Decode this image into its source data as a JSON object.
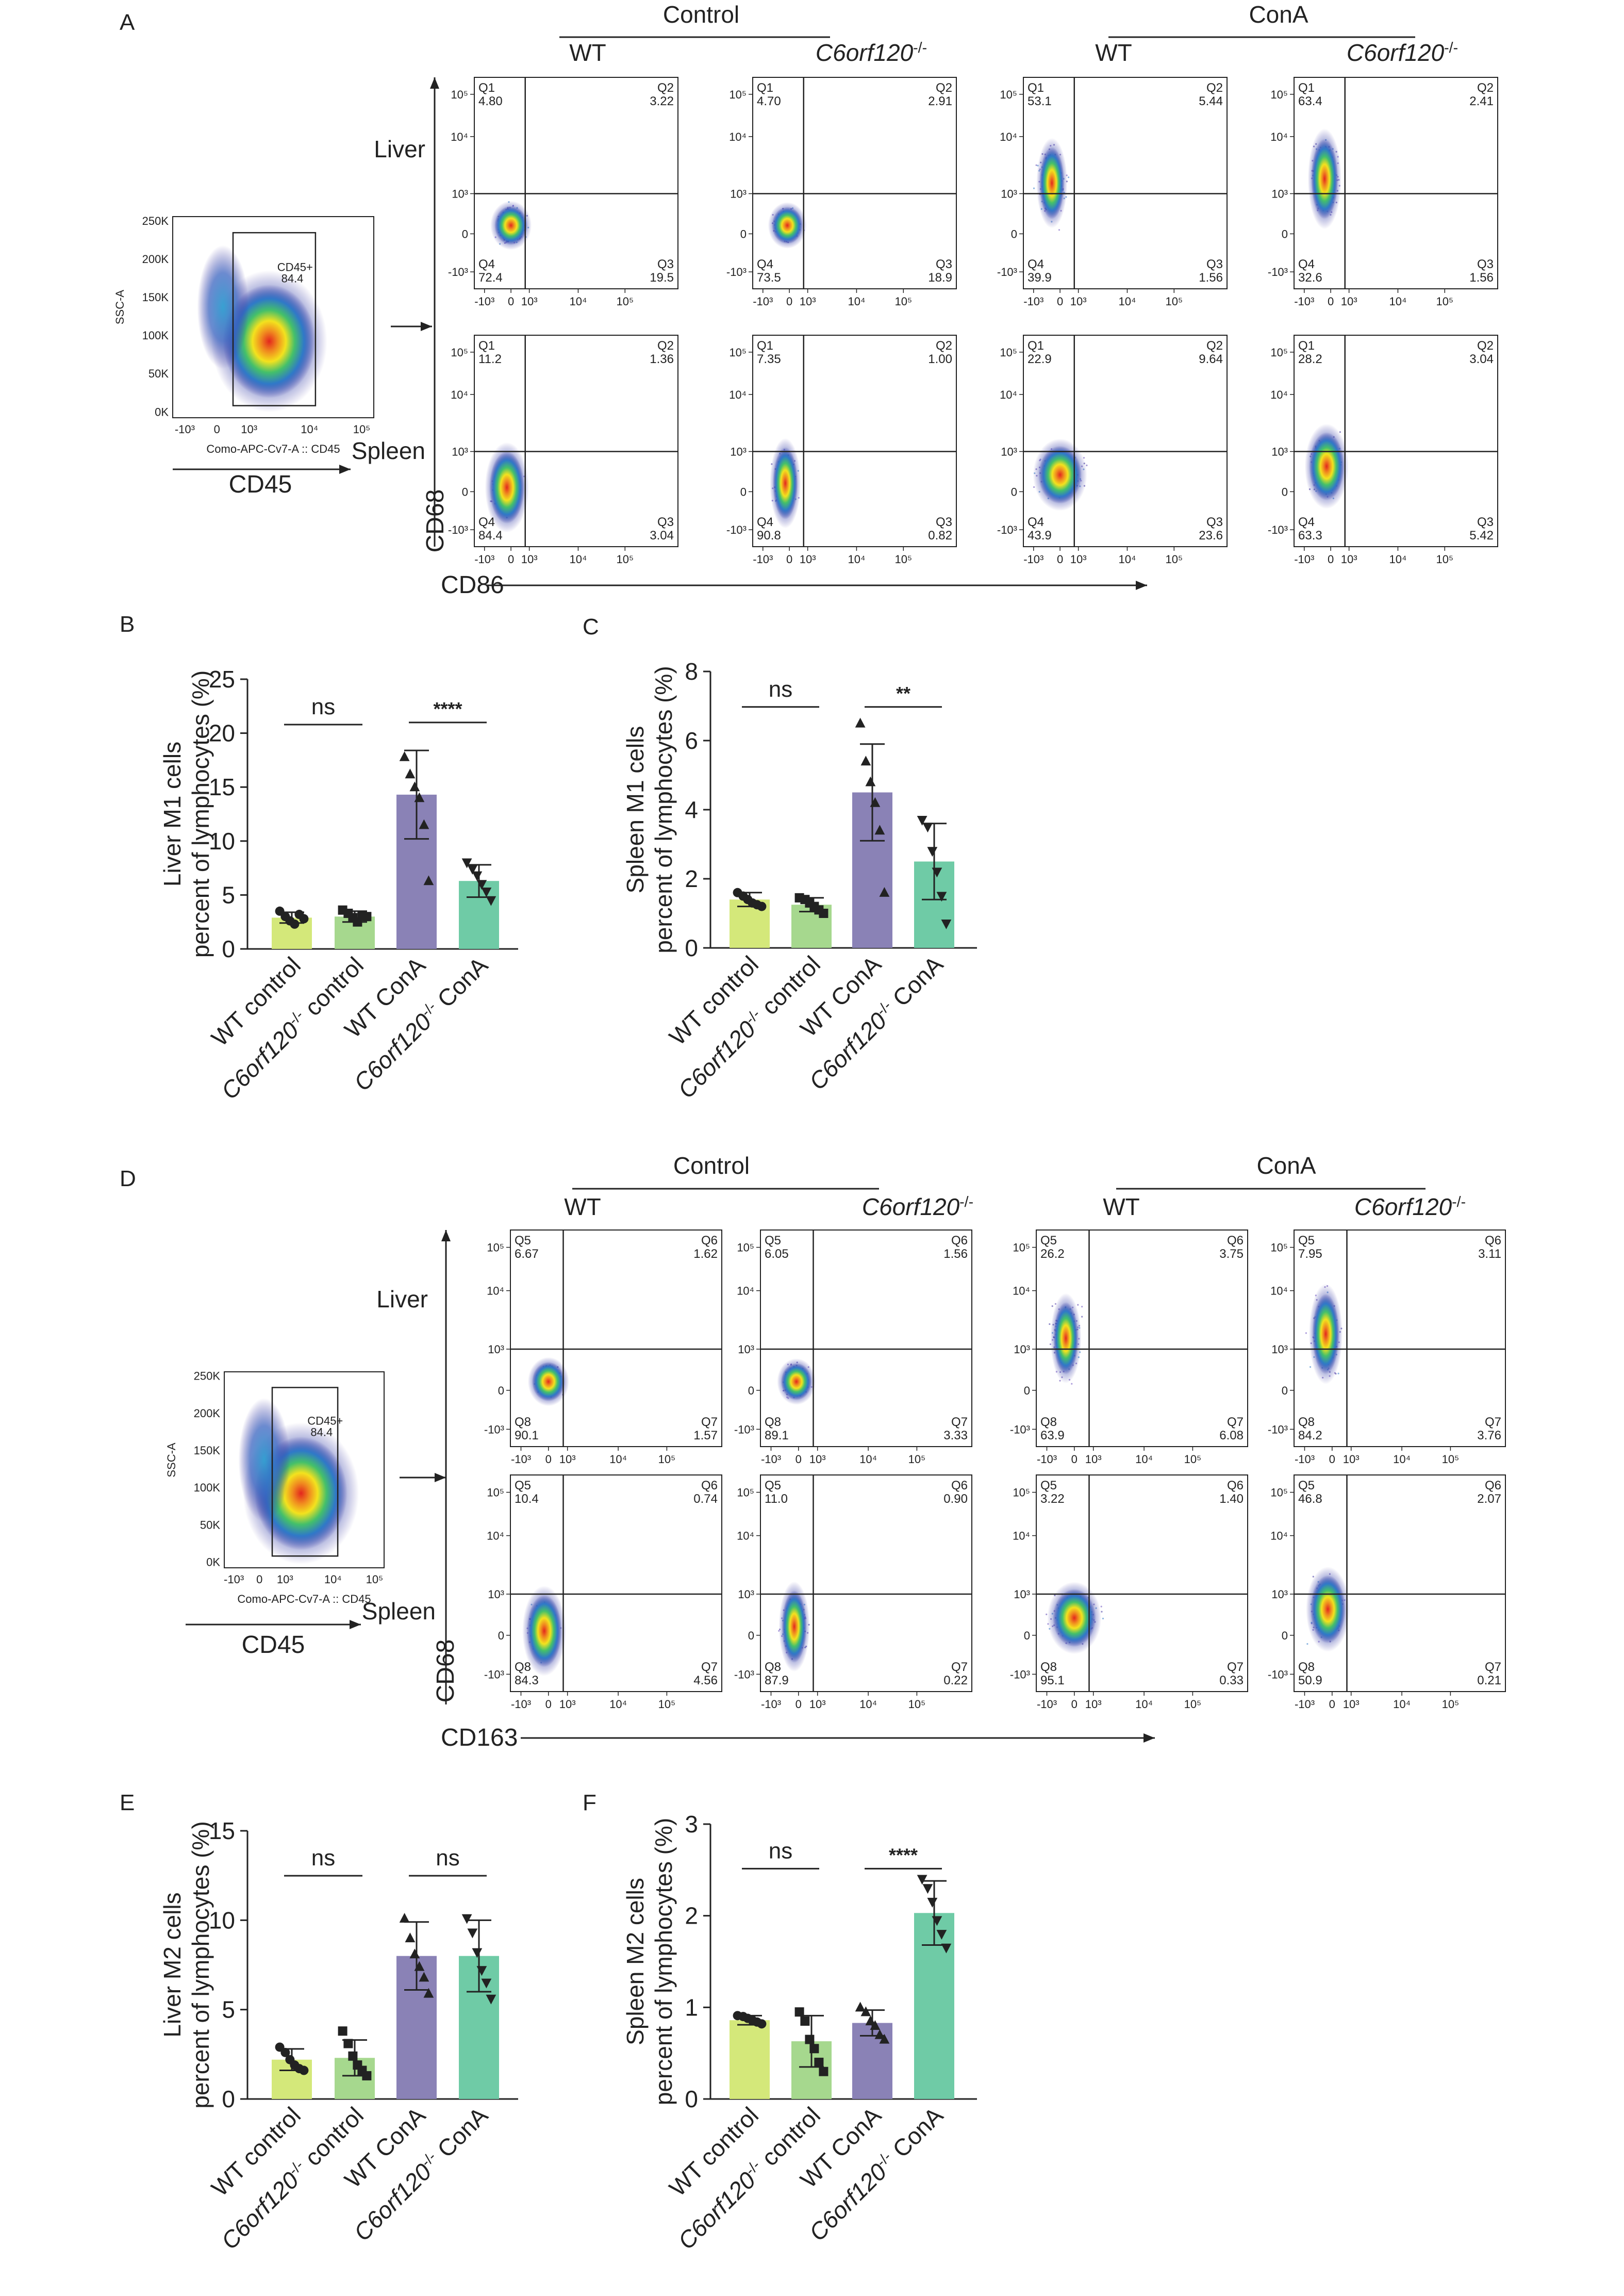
{
  "panels": {
    "A": {
      "letter": "A",
      "group_labels": [
        "Control",
        "ConA"
      ],
      "col_labels": [
        "WT",
        "C6orf120",
        "WT",
        "C6orf120"
      ],
      "ko_sup": "-/-",
      "row_labels": [
        "Liver",
        "Spleen"
      ],
      "y_axis": "CD68",
      "x_axis": "CD86",
      "gate": {
        "ylabel": "SSC-A",
        "xlabel": "Como-APC-Cv7-A :: CD45",
        "marker": "CD45",
        "gate_name": "CD45+",
        "gate_value": "84.4",
        "yticks": [
          "250K",
          "200K",
          "150K",
          "100K",
          "50K",
          "0K"
        ],
        "xticks": [
          "-10³",
          "0",
          "10³",
          "10⁴",
          "10⁵"
        ]
      },
      "plots": [
        {
          "tl": "Q1",
          "tlv": "4.80",
          "tr": "Q2",
          "trv": "3.22",
          "bl": "Q4",
          "blv": "72.4",
          "br": "Q3",
          "brv": "19.5"
        },
        {
          "tl": "Q1",
          "tlv": "4.70",
          "tr": "Q2",
          "trv": "2.91",
          "bl": "Q4",
          "blv": "73.5",
          "br": "Q3",
          "brv": "18.9"
        },
        {
          "tl": "Q1",
          "tlv": "53.1",
          "tr": "Q2",
          "trv": "5.44",
          "bl": "Q4",
          "blv": "39.9",
          "br": "Q3",
          "brv": "1.56"
        },
        {
          "tl": "Q1",
          "tlv": "63.4",
          "tr": "Q2",
          "trv": "2.41",
          "bl": "Q4",
          "blv": "32.6",
          "br": "Q3",
          "brv": "1.56"
        },
        {
          "tl": "Q1",
          "tlv": "11.2",
          "tr": "Q2",
          "trv": "1.36",
          "bl": "Q4",
          "blv": "84.4",
          "br": "Q3",
          "brv": "3.04"
        },
        {
          "tl": "Q1",
          "tlv": "7.35",
          "tr": "Q2",
          "trv": "1.00",
          "bl": "Q4",
          "blv": "90.8",
          "br": "Q3",
          "brv": "0.82"
        },
        {
          "tl": "Q1",
          "tlv": "22.9",
          "tr": "Q2",
          "trv": "9.64",
          "bl": "Q4",
          "blv": "43.9",
          "br": "Q3",
          "brv": "23.6"
        },
        {
          "tl": "Q1",
          "tlv": "28.2",
          "tr": "Q2",
          "trv": "3.04",
          "bl": "Q4",
          "blv": "63.3",
          "br": "Q3",
          "brv": "5.42"
        }
      ]
    },
    "D": {
      "letter": "D",
      "group_labels": [
        "Control",
        "ConA"
      ],
      "col_labels": [
        "WT",
        "C6orf120",
        "WT",
        "C6orf120"
      ],
      "ko_sup": "-/-",
      "row_labels": [
        "Liver",
        "Spleen"
      ],
      "y_axis": "CD68",
      "x_axis": "CD163",
      "gate": {
        "ylabel": "SSC-A",
        "xlabel": "Como-APC-Cv7-A :: CD45",
        "marker": "CD45",
        "gate_name": "CD45+",
        "gate_value": "84.4",
        "yticks": [
          "250K",
          "200K",
          "150K",
          "100K",
          "50K",
          "0K"
        ],
        "xticks": [
          "-10³",
          "0",
          "10³",
          "10⁴",
          "10⁵"
        ]
      },
      "plots": [
        {
          "tl": "Q5",
          "tlv": "6.67",
          "tr": "Q6",
          "trv": "1.62",
          "bl": "Q8",
          "blv": "90.1",
          "br": "Q7",
          "brv": "1.57"
        },
        {
          "tl": "Q5",
          "tlv": "6.05",
          "tr": "Q6",
          "trv": "1.56",
          "bl": "Q8",
          "blv": "89.1",
          "br": "Q7",
          "brv": "3.33"
        },
        {
          "tl": "Q5",
          "tlv": "26.2",
          "tr": "Q6",
          "trv": "3.75",
          "bl": "Q8",
          "blv": "63.9",
          "br": "Q7",
          "brv": "6.08"
        },
        {
          "tl": "Q5",
          "tlv": "7.95",
          "tr": "Q6",
          "trv": "3.11",
          "bl": "Q8",
          "blv": "84.2",
          "br": "Q7",
          "brv": "3.76"
        },
        {
          "tl": "Q5",
          "tlv": "10.4",
          "tr": "Q6",
          "trv": "0.74",
          "bl": "Q8",
          "blv": "84.3",
          "br": "Q7",
          "brv": "4.56"
        },
        {
          "tl": "Q5",
          "tlv": "11.0",
          "tr": "Q6",
          "trv": "0.90",
          "bl": "Q8",
          "blv": "87.9",
          "br": "Q7",
          "brv": "0.22"
        },
        {
          "tl": "Q5",
          "tlv": "3.22",
          "tr": "Q6",
          "trv": "1.40",
          "bl": "Q8",
          "blv": "95.1",
          "br": "Q7",
          "brv": "0.33"
        },
        {
          "tl": "Q5",
          "tlv": "46.8",
          "tr": "Q6",
          "trv": "2.07",
          "bl": "Q8",
          "blv": "50.9",
          "br": "Q7",
          "brv": "0.21"
        }
      ]
    },
    "flow_ticks": {
      "x": [
        "-10³",
        "0",
        "10³",
        "10⁴",
        "10⁵"
      ],
      "y": [
        "10⁵",
        "10⁴",
        "10³",
        "0",
        "-10³"
      ]
    }
  },
  "chart_data": [
    {
      "type": "bar",
      "panel": "B",
      "letter": "B",
      "ylabel_line1": "Liver M1 cells",
      "ylabel_line2": "percent of lymphocytes (%)",
      "categories": [
        "WT control",
        "C6orf120 control",
        "WT ConA",
        "C6orf120 ConA"
      ],
      "ko_sup": "-/-",
      "ylim": [
        0,
        25
      ],
      "yticks": [
        0,
        5,
        10,
        15,
        20,
        25
      ],
      "values": [
        2.9,
        3.0,
        14.3,
        6.3
      ],
      "sd": [
        0.5,
        0.5,
        4.1,
        1.5
      ],
      "points": [
        [
          3.5,
          3.0,
          2.6,
          2.3,
          3.2,
          2.8
        ],
        [
          3.6,
          3.3,
          2.9,
          2.5,
          3.1,
          3.0
        ],
        [
          17.8,
          16.2,
          15.0,
          14.0,
          11.5,
          6.3
        ],
        [
          8.0,
          7.4,
          6.8,
          6.0,
          5.3,
          4.5
        ]
      ],
      "markers": [
        "circle",
        "square",
        "triangle",
        "triangle-down"
      ],
      "comparisons": [
        {
          "from": 0,
          "to": 1,
          "label": "ns",
          "y": 22.8
        },
        {
          "from": 2,
          "to": 3,
          "label": "****",
          "y": 23.0
        }
      ]
    },
    {
      "type": "bar",
      "panel": "C",
      "letter": "C",
      "ylabel_line1": "Spleen M1 cells",
      "ylabel_line2": "percent of lymphocytes (%)",
      "categories": [
        "WT control",
        "C6orf120 control",
        "WT ConA",
        "C6orf120 ConA"
      ],
      "ko_sup": "-/-",
      "ylim": [
        0,
        8
      ],
      "yticks": [
        0,
        2,
        4,
        6,
        8
      ],
      "values": [
        1.4,
        1.25,
        4.5,
        2.5
      ],
      "sd": [
        0.2,
        0.2,
        1.4,
        1.1
      ],
      "points": [
        [
          1.6,
          1.5,
          1.4,
          1.3,
          1.25,
          1.2
        ],
        [
          1.45,
          1.4,
          1.3,
          1.2,
          1.1,
          1.0
        ],
        [
          6.5,
          5.4,
          4.8,
          4.2,
          3.4,
          1.6
        ],
        [
          3.7,
          3.5,
          2.8,
          2.2,
          1.5,
          0.7
        ]
      ],
      "markers": [
        "circle",
        "square",
        "triangle",
        "triangle-down"
      ],
      "comparisons": [
        {
          "from": 0,
          "to": 1,
          "label": "ns",
          "y": 7.6
        },
        {
          "from": 2,
          "to": 3,
          "label": "**",
          "y": 7.6
        }
      ]
    },
    {
      "type": "bar",
      "panel": "E",
      "letter": "E",
      "ylabel_line1": "Liver M2 cells",
      "ylabel_line2": "percent of lymphocytes (%)",
      "categories": [
        "WT control",
        "C6orf120 control",
        "WT ConA",
        "C6orf120 ConA"
      ],
      "ko_sup": "-/-",
      "ylim": [
        0,
        15
      ],
      "yticks": [
        0,
        5,
        10,
        15
      ],
      "values": [
        2.2,
        2.3,
        8.0,
        8.0
      ],
      "sd": [
        0.6,
        1.0,
        1.9,
        2.0
      ],
      "points": [
        [
          2.9,
          2.6,
          2.2,
          1.9,
          1.7,
          1.6
        ],
        [
          3.8,
          3.1,
          2.4,
          1.9,
          1.6,
          1.3
        ],
        [
          10.1,
          9.0,
          8.1,
          7.4,
          6.8,
          5.9
        ],
        [
          10.1,
          9.3,
          8.2,
          7.2,
          6.5,
          5.6
        ]
      ],
      "markers": [
        "circle",
        "square",
        "triangle",
        "triangle-down"
      ],
      "comparisons": [
        {
          "from": 0,
          "to": 1,
          "label": "ns",
          "y": 13.7
        },
        {
          "from": 2,
          "to": 3,
          "label": "ns",
          "y": 13.7
        }
      ]
    },
    {
      "type": "bar",
      "panel": "F",
      "letter": "F",
      "ylabel_line1": "Spleen M2 cells",
      "ylabel_line2": "percent of lymphocytes (%)",
      "categories": [
        "WT control",
        "C6orf120 control",
        "WT ConA",
        "C6orf120 ConA"
      ],
      "ko_sup": "-/-",
      "ylim": [
        0,
        3
      ],
      "yticks": [
        0,
        1,
        2,
        3
      ],
      "values": [
        0.86,
        0.63,
        0.83,
        2.03
      ],
      "sd": [
        0.05,
        0.28,
        0.14,
        0.35
      ],
      "points": [
        [
          0.91,
          0.9,
          0.88,
          0.86,
          0.84,
          0.82
        ],
        [
          0.95,
          0.85,
          0.65,
          0.55,
          0.4,
          0.3
        ],
        [
          1.0,
          0.95,
          0.85,
          0.8,
          0.7,
          0.65
        ],
        [
          2.4,
          2.3,
          2.15,
          1.95,
          1.8,
          1.65
        ]
      ],
      "markers": [
        "circle",
        "square",
        "triangle",
        "triangle-down"
      ],
      "comparisons": [
        {
          "from": 0,
          "to": 1,
          "label": "ns",
          "y": 2.75
        },
        {
          "from": 2,
          "to": 3,
          "label": "****",
          "y": 2.75
        }
      ]
    }
  ],
  "colors": {
    "bar_fills": [
      "#d4e87a",
      "#a6d88e",
      "#8a82b6",
      "#6fcba6"
    ],
    "line": "#222222"
  }
}
